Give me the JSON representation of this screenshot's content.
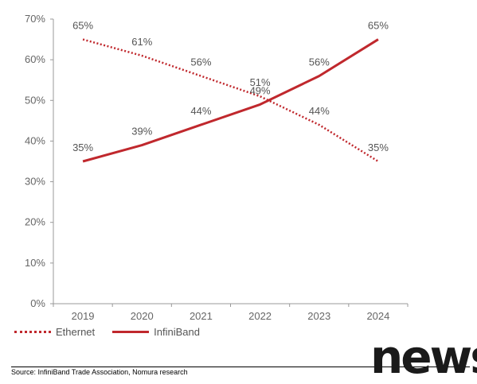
{
  "chart_data": {
    "type": "line",
    "categories": [
      "2019",
      "2020",
      "2021",
      "2022",
      "2023",
      "2024"
    ],
    "series": [
      {
        "name": "Ethernet",
        "values": [
          65,
          61,
          56,
          51,
          44,
          35
        ],
        "style": "dotted",
        "color": "#c0282d"
      },
      {
        "name": "InfiniBand",
        "values": [
          35,
          39,
          44,
          49,
          56,
          65
        ],
        "style": "solid",
        "color": "#c0282d"
      }
    ],
    "data_labels": {
      "Ethernet": [
        "65%",
        "61%",
        "56%",
        "51%",
        "44%",
        "35%"
      ],
      "InfiniBand": [
        "35%",
        "39%",
        "44%",
        "49%",
        "56%",
        "65%"
      ]
    },
    "y_ticks": [
      "0%",
      "10%",
      "20%",
      "30%",
      "40%",
      "50%",
      "60%",
      "70%"
    ],
    "ylim": [
      0,
      70
    ],
    "grid": false,
    "legend_position": "bottom-left"
  },
  "legend": {
    "ethernet_label": "Ethernet",
    "infiniband_label": "InfiniBand"
  },
  "footer": {
    "source": "Source: InfiniBand Trade Association, Nomura research"
  },
  "watermark": {
    "text": "news"
  }
}
